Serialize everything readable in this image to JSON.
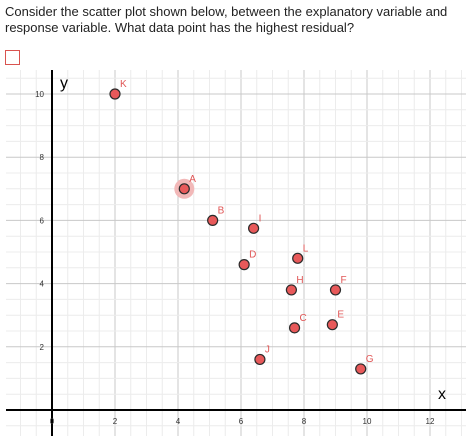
{
  "question": {
    "text": "Consider the scatter plot shown below, between the explanatory variable and response variable.  What data point has the highest residual?"
  },
  "colors": {
    "point_fill": "#e8595a",
    "point_stroke": "#2b2b2b",
    "label": "#e05555",
    "highlight": "#f2b8b8",
    "grid_minor": "#ececec",
    "grid_major": "#c8c8c8",
    "axis": "#000000"
  },
  "chart_data": {
    "type": "scatter",
    "xlabel": "x",
    "ylabel": "y",
    "xlim": [
      0,
      13
    ],
    "ylim": [
      0,
      10.8
    ],
    "x_ticks": [
      0,
      2,
      4,
      6,
      8,
      10,
      12
    ],
    "y_ticks": [
      2,
      4,
      6,
      8,
      10
    ],
    "grid": true,
    "points": [
      {
        "label": "K",
        "x": 2.0,
        "y": 10.0
      },
      {
        "label": "A",
        "x": 4.2,
        "y": 7.0,
        "highlighted": true
      },
      {
        "label": "B",
        "x": 5.1,
        "y": 6.0
      },
      {
        "label": "I",
        "x": 6.4,
        "y": 5.75
      },
      {
        "label": "D",
        "x": 6.1,
        "y": 4.6
      },
      {
        "label": "L",
        "x": 7.8,
        "y": 4.8
      },
      {
        "label": "H",
        "x": 7.6,
        "y": 3.8
      },
      {
        "label": "F",
        "x": 9.0,
        "y": 3.8
      },
      {
        "label": "C",
        "x": 7.7,
        "y": 2.6
      },
      {
        "label": "E",
        "x": 8.9,
        "y": 2.7
      },
      {
        "label": "J",
        "x": 6.6,
        "y": 1.6
      },
      {
        "label": "G",
        "x": 9.8,
        "y": 1.3
      }
    ]
  }
}
